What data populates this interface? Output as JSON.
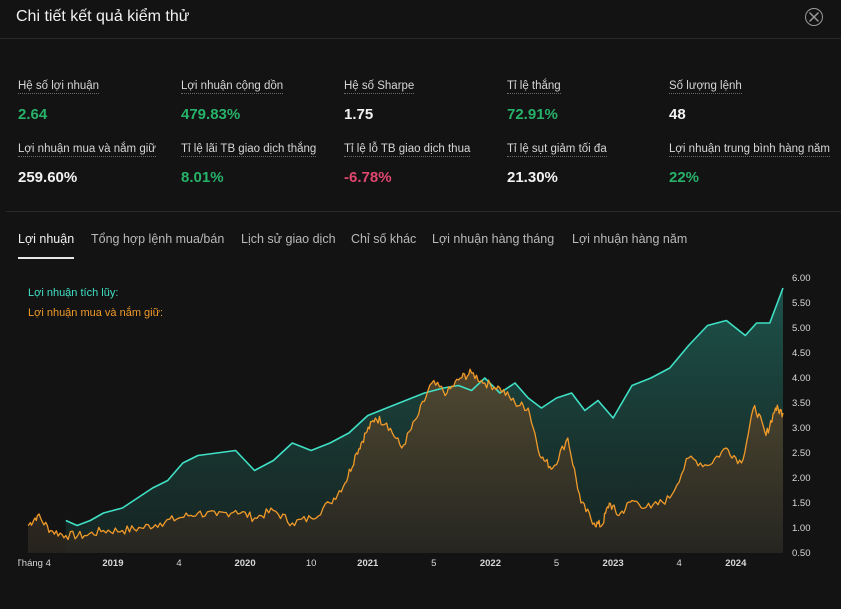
{
  "header": {
    "title": "Chi tiết kết quả kiểm thử",
    "close_icon": "close-circle-icon"
  },
  "stats": [
    {
      "label": "Hệ số lợi nhuận",
      "value": "2.64",
      "tone": "pos"
    },
    {
      "label": "Lợi nhuận cộng dồn",
      "value": "479.83%",
      "tone": "pos"
    },
    {
      "label": "Hệ số Sharpe",
      "value": "1.75",
      "tone": "neu"
    },
    {
      "label": "Tỉ lệ thắng",
      "value": "72.91%",
      "tone": "pos"
    },
    {
      "label": "Số lượng lệnh",
      "value": "48",
      "tone": "neu"
    },
    {
      "label": "Lợi nhuận mua và nắm giữ",
      "value": "259.60%",
      "tone": "neu"
    },
    {
      "label": "Tỉ lệ lãi TB giao dịch thắng",
      "value": "8.01%",
      "tone": "pos"
    },
    {
      "label": "Tỉ lệ lỗ TB giao dịch thua",
      "value": "-6.78%",
      "tone": "neg"
    },
    {
      "label": "Tỉ lệ sụt giảm tối đa",
      "value": "21.30%",
      "tone": "neu"
    },
    {
      "label": "Lợi nhuận trung bình hàng năm",
      "value": "22%",
      "tone": "pos"
    }
  ],
  "tabs": [
    {
      "label": "Lợi nhuận",
      "active": true
    },
    {
      "label": "Tổng hợp lệnh mua/bán",
      "active": false
    },
    {
      "label": "Lịch sử giao dịch",
      "active": false
    },
    {
      "label": "Chỉ số khác",
      "active": false
    },
    {
      "label": "Lợi nhuận hàng tháng",
      "active": false
    },
    {
      "label": "Lợi nhuận hàng năm",
      "active": false
    }
  ],
  "colors": {
    "cumulative": "#3fe0c5",
    "buy_hold": "#f09a2a",
    "positive": "#27b26a",
    "negative": "#e0466e"
  },
  "chart_data": {
    "type": "area",
    "legend": [
      "Lợi nhuận tích lũy:",
      "Lợi nhuận mua và nắm giữ:"
    ],
    "ylim": [
      0.5,
      6.0
    ],
    "yticks": [
      "6.00",
      "5.50",
      "5.00",
      "4.50",
      "4.00",
      "3.50",
      "3.00",
      "2.50",
      "2.00",
      "1.50",
      "1.00",
      "0.50"
    ],
    "xlim": [
      0,
      40
    ],
    "xticks": [
      {
        "label": "Tháng 4",
        "x": 0
      },
      {
        "label": "2019",
        "x": 4.5
      },
      {
        "label": "4",
        "x": 8
      },
      {
        "label": "2020",
        "x": 11.5
      },
      {
        "label": "10",
        "x": 15
      },
      {
        "label": "2021",
        "x": 18
      },
      {
        "label": "5",
        "x": 21.5
      },
      {
        "label": "2022",
        "x": 24.5
      },
      {
        "label": "5",
        "x": 28
      },
      {
        "label": "2023",
        "x": 31
      },
      {
        "label": "4",
        "x": 34.5
      },
      {
        "label": "2024",
        "x": 37.5
      }
    ],
    "series": [
      {
        "name": "Lợi nhuận tích lũy:",
        "x": [
          2,
          2.6,
          3.3,
          4,
          5,
          5.8,
          6.6,
          7.4,
          8.2,
          9,
          10,
          11,
          12,
          13,
          14,
          15,
          16,
          17,
          18,
          19,
          20,
          21,
          22,
          22.8,
          23.5,
          24.2,
          25,
          25.8,
          26.5,
          27.2,
          28,
          28.8,
          29.5,
          30.2,
          31,
          32,
          33,
          34,
          35,
          36,
          37,
          38,
          38.6,
          39.3,
          40
        ],
        "y": [
          1.15,
          1.05,
          1.15,
          1.3,
          1.4,
          1.6,
          1.8,
          1.95,
          2.3,
          2.45,
          2.5,
          2.55,
          2.15,
          2.35,
          2.7,
          2.55,
          2.7,
          2.9,
          3.25,
          3.4,
          3.55,
          3.7,
          3.8,
          3.85,
          3.75,
          4.0,
          3.7,
          3.9,
          3.6,
          3.4,
          3.6,
          3.7,
          3.35,
          3.55,
          3.2,
          3.85,
          4.0,
          4.2,
          4.65,
          5.05,
          5.15,
          4.85,
          5.1,
          5.1,
          5.8
        ]
      },
      {
        "name": "Lợi nhuận mua và nắm giữ:",
        "x": [
          0,
          0.5,
          1.2,
          2,
          3,
          4,
          5,
          6,
          7,
          8,
          9,
          10,
          11,
          12,
          13,
          14,
          15,
          16,
          16.8,
          17.4,
          17.9,
          18.4,
          19,
          19.8,
          20.6,
          21.4,
          22.2,
          22.9,
          23.5,
          24.2,
          25,
          25.8,
          26.5,
          27.2,
          27.8,
          28.6,
          29.3,
          30.0,
          30.4,
          30.8,
          31.3,
          32,
          33,
          34,
          35,
          36,
          37,
          37.8,
          38.5,
          39.1,
          39.6,
          40
        ],
        "y": [
          1.05,
          1.25,
          0.95,
          0.85,
          0.85,
          0.95,
          0.95,
          1.0,
          1.1,
          1.2,
          1.3,
          1.25,
          1.35,
          1.2,
          1.35,
          1.1,
          1.2,
          1.5,
          1.9,
          2.5,
          2.9,
          3.2,
          3.1,
          2.6,
          3.2,
          3.9,
          3.7,
          4.0,
          4.1,
          3.9,
          3.8,
          3.5,
          3.4,
          2.4,
          2.2,
          2.8,
          1.5,
          1.1,
          1.05,
          1.5,
          1.25,
          1.55,
          1.4,
          1.6,
          2.4,
          2.25,
          2.6,
          2.3,
          3.45,
          2.85,
          3.4,
          3.3
        ]
      }
    ]
  }
}
